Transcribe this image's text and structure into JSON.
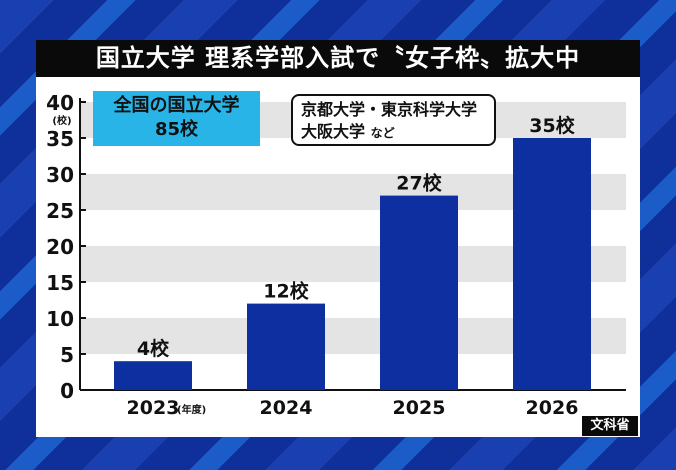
{
  "title": "国立大学 理系学部入試で〝女子枠〟拡大中",
  "badge": {
    "line1": "全国の国立大学",
    "line2": "85校"
  },
  "callout": {
    "line1": "京都大学・東京科学大学",
    "line2": "大阪大学",
    "suffix": "など"
  },
  "source": "文科省",
  "colors": {
    "bar": "#0e2fa0",
    "badge": "#29b4e8",
    "band": "#e4e4e4"
  },
  "chart_data": {
    "type": "bar",
    "categories": [
      "2023",
      "2024",
      "2025",
      "2026"
    ],
    "category_suffix_first": "(年度)",
    "values": [
      4,
      12,
      27,
      35
    ],
    "data_labels": [
      "4校",
      "12校",
      "27校",
      "35校"
    ],
    "ylabel": "(校)",
    "ylim": [
      0,
      40
    ],
    "yticks": [
      0,
      5,
      10,
      15,
      20,
      25,
      30,
      35,
      40
    ],
    "grid": "alternating horizontal bands"
  }
}
